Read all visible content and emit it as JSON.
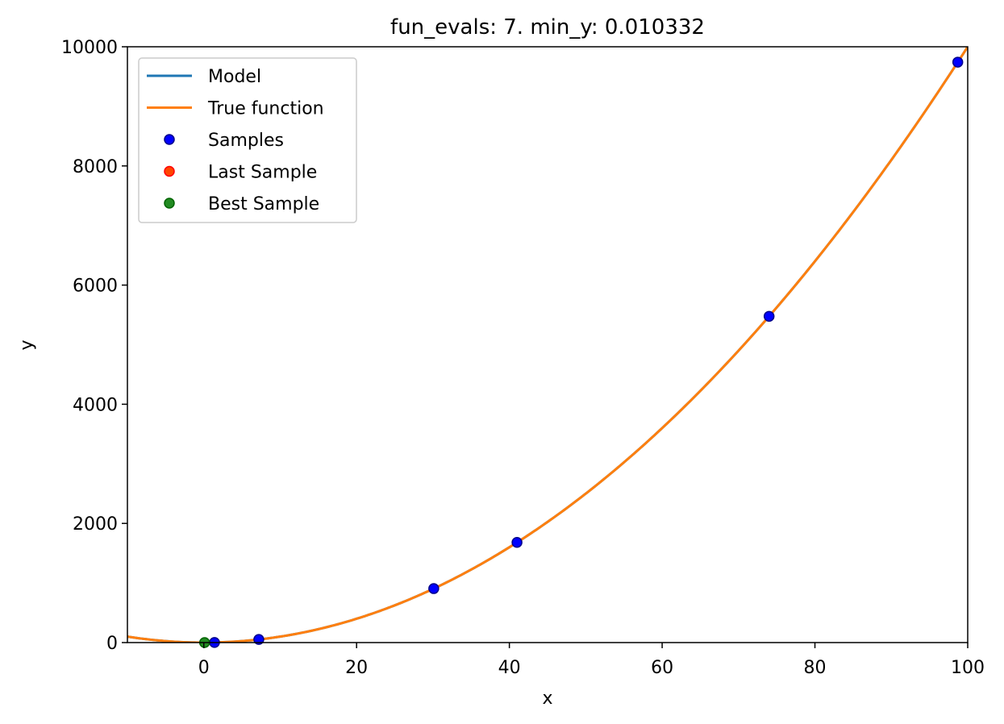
{
  "chart_data": {
    "type": "line",
    "title": "fun_evals: 7. min_y: 0.010332",
    "xlabel": "x",
    "ylabel": "y",
    "xlim": [
      -10,
      100
    ],
    "ylim": [
      0,
      10000
    ],
    "xticks": [
      0,
      20,
      40,
      60,
      80,
      100
    ],
    "yticks": [
      0,
      2000,
      4000,
      6000,
      8000,
      10000
    ],
    "grid": false,
    "legend_placement": "top-left",
    "series": [
      {
        "name": "Model",
        "kind": "line",
        "color": "#1f77b4",
        "function": "x^2",
        "x_range": [
          -10,
          100
        ]
      },
      {
        "name": "True function",
        "kind": "line",
        "color": "#ff7f0e",
        "function": "x^2",
        "x_range": [
          -10,
          100
        ]
      },
      {
        "name": "Samples",
        "kind": "scatter",
        "color": "#0000ff",
        "edge": "#00008b",
        "points": [
          [
            1.4,
            2
          ],
          [
            7.2,
            52
          ],
          [
            30.1,
            906
          ],
          [
            41.0,
            1681
          ],
          [
            74.0,
            5476
          ],
          [
            98.7,
            9742
          ]
        ]
      },
      {
        "name": "Last Sample",
        "kind": "scatter",
        "color": "#ff4500",
        "edge": "#ff0000",
        "points": []
      },
      {
        "name": "Best Sample",
        "kind": "scatter",
        "color": "#228b22",
        "edge": "#006400",
        "points": [
          [
            0.1,
            0.010332
          ]
        ]
      }
    ]
  }
}
